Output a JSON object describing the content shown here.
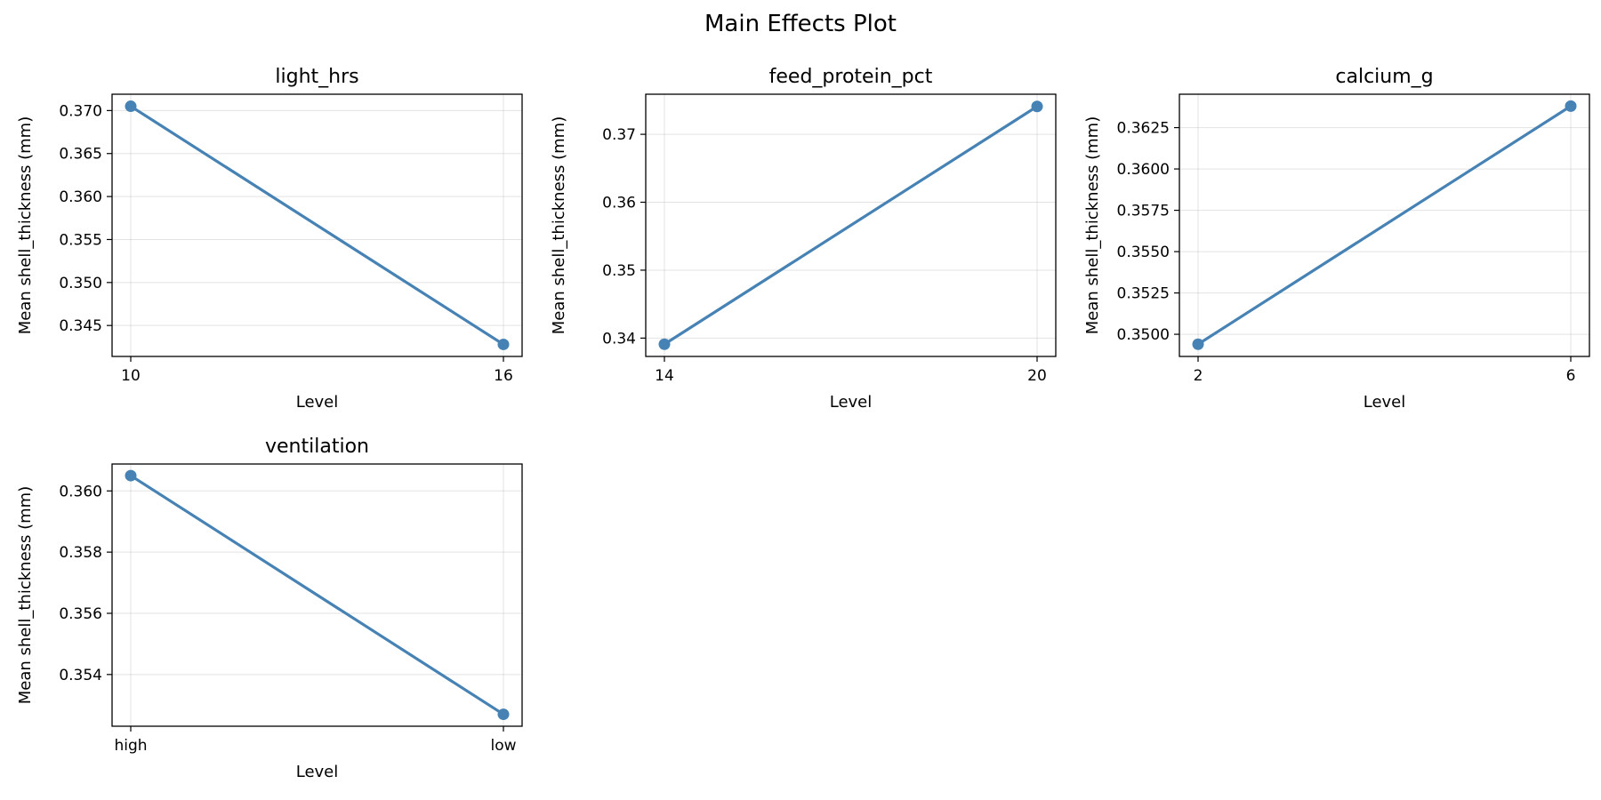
{
  "figure": {
    "title": "Main Effects Plot",
    "line_color": "#4682b4"
  },
  "chart_data": [
    {
      "type": "line",
      "title": "light_hrs",
      "xlabel": "Level",
      "ylabel": "Mean shell_thickness (mm)",
      "categories": [
        "10",
        "16"
      ],
      "values": [
        0.3705,
        0.3428
      ],
      "ylim": [
        0.3414,
        0.3719
      ],
      "yticks": [
        0.345,
        0.35,
        0.355,
        0.36,
        0.365,
        0.37
      ],
      "ytick_labels": [
        "0.345",
        "0.350",
        "0.355",
        "0.360",
        "0.365",
        "0.370"
      ],
      "grid": true
    },
    {
      "type": "line",
      "title": "feed_protein_pct",
      "xlabel": "Level",
      "ylabel": "Mean shell_thickness (mm)",
      "categories": [
        "14",
        "20"
      ],
      "values": [
        0.3391,
        0.3741
      ],
      "ylim": [
        0.3373,
        0.3759
      ],
      "yticks": [
        0.34,
        0.35,
        0.36,
        0.37
      ],
      "ytick_labels": [
        "0.34",
        "0.35",
        "0.36",
        "0.37"
      ],
      "grid": true
    },
    {
      "type": "line",
      "title": "calcium_g",
      "xlabel": "Level",
      "ylabel": "Mean shell_thickness (mm)",
      "categories": [
        "2",
        "6"
      ],
      "values": [
        0.3494,
        0.3638
      ],
      "ylim": [
        0.34866,
        0.36452
      ],
      "yticks": [
        0.35,
        0.3525,
        0.355,
        0.3575,
        0.36,
        0.3625
      ],
      "ytick_labels": [
        "0.3500",
        "0.3525",
        "0.3550",
        "0.3575",
        "0.3600",
        "0.3625"
      ],
      "grid": true
    },
    {
      "type": "line",
      "title": "ventilation",
      "xlabel": "Level",
      "ylabel": "Mean shell_thickness (mm)",
      "categories": [
        "high",
        "low"
      ],
      "values": [
        0.3605,
        0.3527
      ],
      "ylim": [
        0.35231,
        0.36088
      ],
      "yticks": [
        0.354,
        0.356,
        0.358,
        0.36
      ],
      "ytick_labels": [
        "0.354",
        "0.356",
        "0.358",
        "0.360"
      ],
      "grid": true
    }
  ]
}
